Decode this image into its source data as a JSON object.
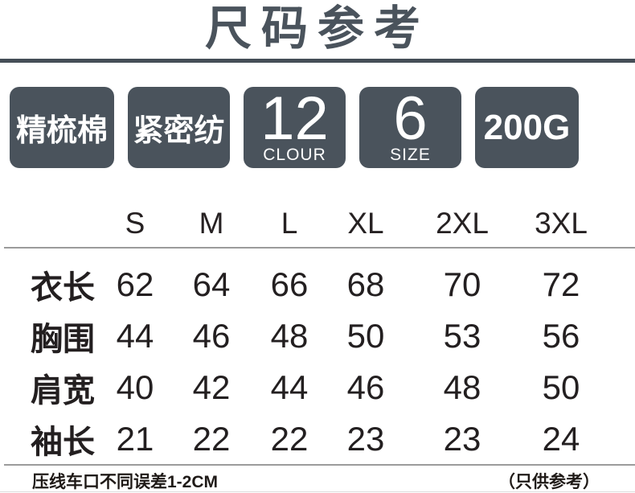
{
  "title": "尺码参考",
  "badges": [
    {
      "label": "精梳棉"
    },
    {
      "label": "紧密纺"
    },
    {
      "value": "12",
      "caption": "CLOUR"
    },
    {
      "value": "6",
      "caption": "SIZE"
    },
    {
      "label": "200G"
    }
  ],
  "size_table": {
    "columns": [
      "S",
      "M",
      "L",
      "XL",
      "2XL",
      "3XL"
    ],
    "rows": [
      {
        "label": "衣长",
        "values": [
          "62",
          "64",
          "66",
          "68",
          "70",
          "72"
        ]
      },
      {
        "label": "胸围",
        "values": [
          "44",
          "46",
          "48",
          "50",
          "53",
          "56"
        ]
      },
      {
        "label": "肩宽",
        "values": [
          "40",
          "42",
          "44",
          "46",
          "48",
          "50"
        ]
      },
      {
        "label": "袖长",
        "values": [
          "21",
          "22",
          "22",
          "23",
          "23",
          "24"
        ]
      }
    ]
  },
  "footer": {
    "note_left": "压线车口不同误差1-2CM",
    "note_right": "（只供参考）"
  },
  "colors": {
    "accent": "#4a535c",
    "divider_dark": "#454e57",
    "divider_gray": "#9b9b9b",
    "text": "#231f20",
    "badge_text": "#ffffff"
  }
}
